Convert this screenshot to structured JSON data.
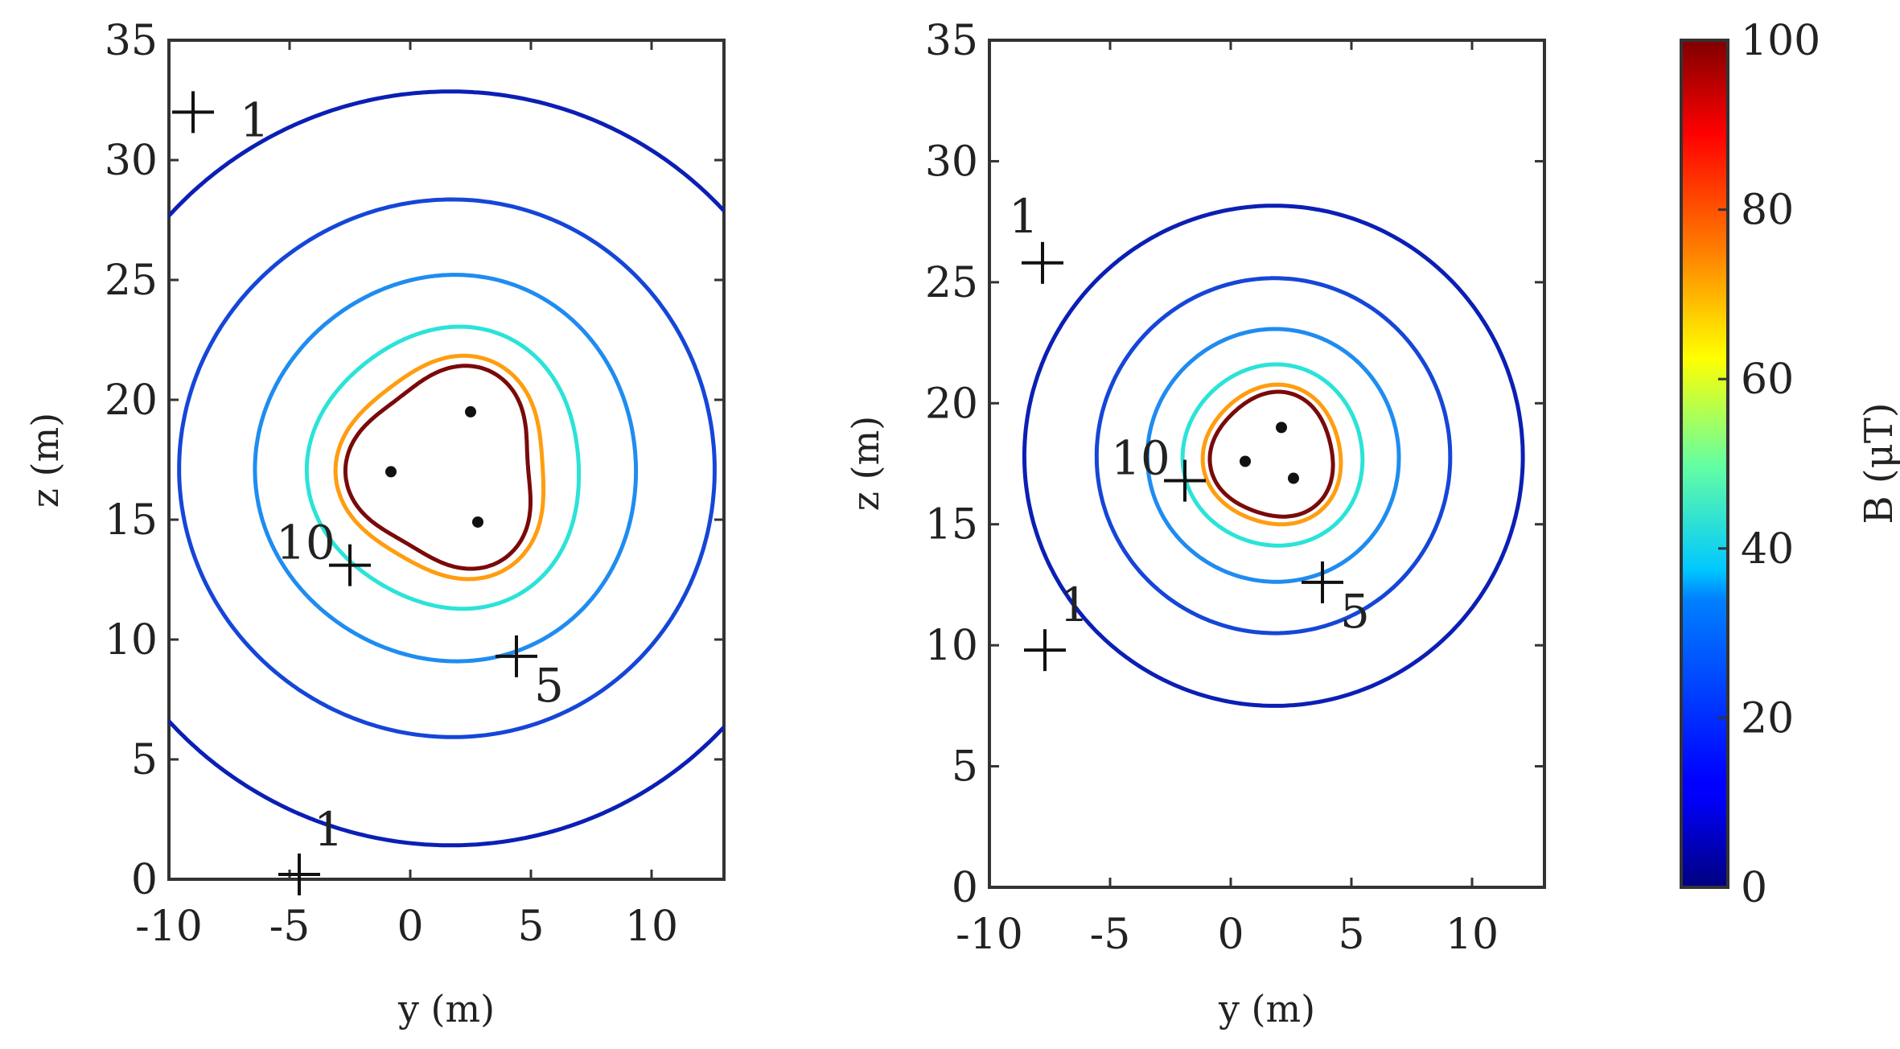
{
  "chart_data": [
    {
      "type": "contour",
      "panel": "left",
      "xlabel": "y (m)",
      "ylabel": "z (m)",
      "xlim": [
        -10,
        13
      ],
      "ylim": [
        0,
        35
      ],
      "xticks": [
        "-10",
        "-5",
        "0",
        "5",
        "10"
      ],
      "yticks": [
        "0",
        "5",
        "10",
        "15",
        "20",
        "25",
        "30",
        "35"
      ],
      "conductors": [
        [
          2.5,
          19.5
        ],
        [
          -0.8,
          17.0
        ],
        [
          2.8,
          14.9
        ]
      ],
      "contours": [
        {
          "level": 1,
          "label": "1",
          "marker": [
            -9.0,
            32.0
          ],
          "marker2": [
            -4.6,
            0.2
          ],
          "label2": "1"
        },
        {
          "level": 5,
          "label": "5",
          "marker": [
            4.4,
            9.3
          ]
        },
        {
          "level": 10,
          "label": "10",
          "marker": [
            -2.5,
            13.1
          ]
        },
        {
          "level": 20
        },
        {
          "level": 40
        },
        {
          "level": 70
        },
        {
          "level": 90
        }
      ]
    },
    {
      "type": "contour",
      "panel": "right",
      "xlabel": "y (m)",
      "ylabel": "z (m)",
      "xlim": [
        -10,
        13
      ],
      "ylim": [
        0,
        35
      ],
      "xticks": [
        "-10",
        "-5",
        "0",
        "5",
        "10"
      ],
      "yticks": [
        "0",
        "5",
        "10",
        "15",
        "20",
        "25",
        "30",
        "35"
      ],
      "conductors": [
        [
          2.1,
          19.0
        ],
        [
          0.6,
          17.6
        ],
        [
          2.6,
          16.9
        ]
      ],
      "contours": [
        {
          "level": 1,
          "label": "1",
          "marker": [
            -7.8,
            25.8
          ],
          "marker2": [
            -7.7,
            9.8
          ],
          "label2": "1"
        },
        {
          "level": 5,
          "label": "5",
          "marker": [
            3.8,
            12.6
          ]
        },
        {
          "level": 10,
          "label": "10",
          "marker": [
            -1.9,
            16.8
          ]
        },
        {
          "level": 20
        },
        {
          "level": 40
        },
        {
          "level": 70
        },
        {
          "level": 90
        }
      ]
    }
  ],
  "colorbar": {
    "label": "B (μT)",
    "min": 0,
    "max": 100,
    "ticks": [
      "0",
      "20",
      "40",
      "60",
      "80",
      "100"
    ],
    "colormap": "jet"
  },
  "colors": {
    "level_1": "#0a0a8a",
    "level_5": "#0b1fb5",
    "level_10": "#1546d8",
    "level_20": "#1f8cf0",
    "level_40": "#2be3d8",
    "level_70": "#ff9d10",
    "level_90": "#7a0a0a",
    "axis": "#333333"
  }
}
